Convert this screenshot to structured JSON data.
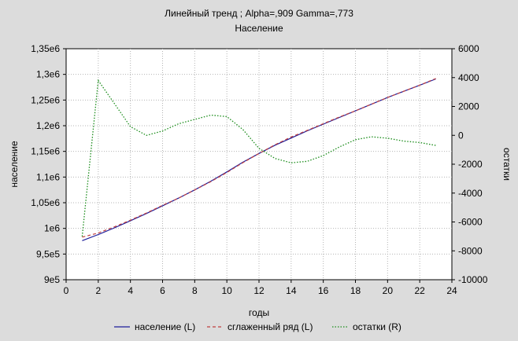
{
  "chart_data": {
    "type": "line",
    "title": "Линейный тренд ; Alpha=,909 Gamma=,773",
    "subtitle": "Население",
    "xlabel": "годы",
    "ylabel_left": "население",
    "ylabel_right": "остатки",
    "xlim": [
      0,
      24
    ],
    "ylim_left": [
      900000,
      1350000
    ],
    "ylim_right": [
      -10000,
      6000
    ],
    "x_ticks": [
      0,
      2,
      4,
      6,
      8,
      10,
      12,
      14,
      16,
      18,
      20,
      22,
      24
    ],
    "x_tick_labels": [
      "0",
      "2",
      "4",
      "6",
      "8",
      "10",
      "12",
      "14",
      "16",
      "18",
      "20",
      "22",
      "24"
    ],
    "y_left_ticks": [
      900000,
      950000,
      1000000,
      1050000,
      1100000,
      1150000,
      1200000,
      1250000,
      1300000,
      1350000
    ],
    "y_left_tick_labels": [
      "9e5",
      "9,5e5",
      "1e6",
      "1,05e6",
      "1,1e6",
      "1,15e6",
      "1,2e6",
      "1,25e6",
      "1,3e6",
      "1,35e6"
    ],
    "y_right_ticks": [
      -10000,
      -8000,
      -6000,
      -4000,
      -2000,
      0,
      2000,
      4000,
      6000
    ],
    "y_right_tick_labels": [
      "-10000",
      "-8000",
      "-6000",
      "-4000",
      "-2000",
      "0",
      "2000",
      "4000",
      "6000"
    ],
    "grid": true,
    "legend_position": "bottom",
    "series": [
      {
        "name": "население (L)",
        "axis": "left",
        "color": "#1c1c9a",
        "dash": "solid",
        "x": [
          1,
          2,
          3,
          4,
          5,
          6,
          7,
          8,
          9,
          10,
          11,
          12,
          13,
          14,
          15,
          16,
          17,
          18,
          19,
          20,
          21,
          22,
          23
        ],
        "y": [
          976000,
          988000,
          1001000,
          1015000,
          1029000,
          1044000,
          1059000,
          1075000,
          1092000,
          1110000,
          1129000,
          1146000,
          1162000,
          1176000,
          1190000,
          1203000,
          1216000,
          1229000,
          1242000,
          1255000,
          1267000,
          1279000,
          1291000
        ]
      },
      {
        "name": "сглаженный ряд (L)",
        "axis": "left",
        "color": "#c04040",
        "dash": "dashed",
        "x": [
          1,
          2,
          3,
          4,
          5,
          6,
          7,
          8,
          9,
          10,
          11,
          12,
          13,
          14,
          15,
          16,
          17,
          18,
          19,
          20,
          21,
          22,
          23
        ],
        "y": [
          983000,
          991000,
          1003000,
          1016000,
          1030000,
          1045000,
          1059000,
          1075000,
          1091000,
          1109000,
          1128000,
          1146000,
          1163000,
          1178000,
          1191000,
          1204000,
          1217000,
          1229000,
          1242000,
          1255000,
          1267000,
          1279000,
          1292000
        ]
      },
      {
        "name": "остатки (R)",
        "axis": "right",
        "color": "#1a8c1a",
        "dash": "dotted",
        "x": [
          1,
          2,
          3,
          4,
          5,
          6,
          7,
          8,
          9,
          10,
          11,
          12,
          13,
          14,
          15,
          16,
          17,
          18,
          19,
          20,
          21,
          22,
          23
        ],
        "y": [
          -7000,
          3800,
          2200,
          600,
          0,
          300,
          800,
          1100,
          1400,
          1300,
          400,
          -900,
          -1600,
          -1900,
          -1800,
          -1400,
          -800,
          -300,
          -100,
          -200,
          -400,
          -500,
          -700
        ]
      }
    ]
  }
}
